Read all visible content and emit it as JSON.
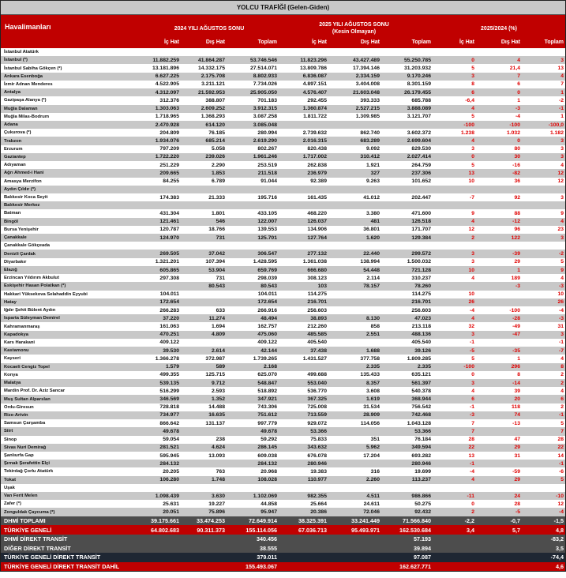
{
  "title": "YOLCU TRAFİĞİ (Gelen-Giden)",
  "header": {
    "airports": "Havalimanları",
    "group2024": "2024 YILI AĞUSTOS SONU",
    "group2025": "2025 YILI AĞUSTOS SONU",
    "group2025_note": "(Kesin Olmayan)",
    "groupPct": "2025/2024 (%)",
    "cols": [
      "İç Hat",
      "Dış Hat",
      "Toplam",
      "İç Hat",
      "Dış Hat",
      "Toplam",
      "İç Hat",
      "Dış Hat",
      "Toplam"
    ]
  },
  "rows": [
    [
      "İstanbul Atatürk",
      "",
      "",
      "",
      "",
      "",
      "",
      "",
      "",
      ""
    ],
    [
      "İstanbul (*)",
      "11.882.259",
      "41.864.287",
      "53.746.546",
      "11.823.296",
      "43.427.489",
      "55.250.785",
      "0",
      "4",
      "3"
    ],
    [
      "İstanbul Sabiha Gökçen (*)",
      "13.181.896",
      "14.332.175",
      "27.514.071",
      "13.809.786",
      "17.394.146",
      "31.203.932",
      "5",
      "21,4",
      "13"
    ],
    [
      "Ankara Esenboğa",
      "6.627.225",
      "2.175.708",
      "8.802.933",
      "6.836.087",
      "2.334.159",
      "9.170.246",
      "3",
      "7",
      "4"
    ],
    [
      "İzmir Adnan Menderes",
      "4.522.905",
      "3.211.121",
      "7.734.026",
      "4.897.151",
      "3.404.008",
      "8.301.159",
      "8",
      "6",
      "7"
    ],
    [
      "Antalya",
      "4.312.097",
      "21.592.953",
      "25.905.050",
      "4.576.407",
      "21.603.048",
      "26.179.455",
      "6",
      "0",
      "1"
    ],
    [
      "Gazipaşa Alanya (*)",
      "312.376",
      "388.807",
      "701.183",
      "292.455",
      "393.333",
      "685.788",
      "-6,4",
      "1",
      "-2"
    ],
    [
      "Muğla Dalaman",
      "1.303.063",
      "2.609.252",
      "3.912.315",
      "1.360.874",
      "2.527.215",
      "3.888.089",
      "4",
      "-3",
      "-1"
    ],
    [
      "Muğla Milas-Bodrum",
      "1.718.965",
      "1.368.293",
      "3.087.258",
      "1.811.722",
      "1.309.985",
      "3.121.707",
      "5",
      "-4",
      "1"
    ],
    [
      "Adana",
      "2.470.928",
      "614.120",
      "3.085.048",
      "",
      "",
      "",
      "-100",
      "-100",
      "-100,0"
    ],
    [
      "Çukurova (*)",
      "204.809",
      "76.185",
      "280.994",
      "2.739.632",
      "862.740",
      "3.602.372",
      "1.238",
      "1.032",
      "1.182"
    ],
    [
      "Trabzon",
      "1.934.076",
      "685.214",
      "2.619.290",
      "2.016.315",
      "683.289",
      "2.699.604",
      "4",
      "0",
      "3"
    ],
    [
      "Erzurum",
      "797.209",
      "5.058",
      "802.267",
      "820.438",
      "9.092",
      "829.530",
      "3",
      "80",
      "3"
    ],
    [
      "Gaziantep",
      "1.722.220",
      "239.026",
      "1.961.246",
      "1.717.002",
      "310.412",
      "2.027.414",
      "0",
      "30",
      "3"
    ],
    [
      "Adıyaman",
      "251.229",
      "2.290",
      "253.519",
      "262.838",
      "1.921",
      "264.759",
      "5",
      "-16",
      "4"
    ],
    [
      "Ağrı Ahmed-i Hani",
      "209.665",
      "1.853",
      "211.518",
      "236.979",
      "327",
      "237.306",
      "13",
      "-82",
      "12"
    ],
    [
      "Amasya Merzifon",
      "84.255",
      "6.789",
      "91.044",
      "92.389",
      "9.263",
      "101.652",
      "10",
      "36",
      "12"
    ],
    [
      "Aydın Çıldır (*)",
      "",
      "",
      "",
      "",
      "",
      "",
      "",
      "",
      ""
    ],
    [
      "Balıkesir Koca Seyit",
      "174.383",
      "21.333",
      "195.716",
      "161.435",
      "41.012",
      "202.447",
      "-7",
      "92",
      "3"
    ],
    [
      "Balıkesir Merkez",
      "",
      "",
      "",
      "",
      "",
      "",
      "",
      "",
      ""
    ],
    [
      "Batman",
      "431.304",
      "1.801",
      "433.105",
      "468.220",
      "3.380",
      "471.600",
      "9",
      "88",
      "9"
    ],
    [
      "Bingöl",
      "121.461",
      "546",
      "122.007",
      "126.037",
      "481",
      "126.518",
      "4",
      "-12",
      "4"
    ],
    [
      "Bursa Yenişehir",
      "120.787",
      "18.766",
      "139.553",
      "134.906",
      "36.801",
      "171.707",
      "12",
      "96",
      "23"
    ],
    [
      "Çanakkale",
      "124.970",
      "731",
      "125.701",
      "127.764",
      "1.620",
      "129.384",
      "2",
      "122",
      "3"
    ],
    [
      "Çanakkale Gökçeada",
      "",
      "",
      "",
      "",
      "",
      "",
      "",
      "",
      ""
    ],
    [
      "Denizli Çardak",
      "269.505",
      "37.042",
      "306.547",
      "277.132",
      "22.440",
      "299.572",
      "3",
      "-39",
      "-2"
    ],
    [
      "Diyarbakır",
      "1.321.201",
      "107.394",
      "1.428.595",
      "1.361.038",
      "138.994",
      "1.500.032",
      "3",
      "29",
      "5"
    ],
    [
      "Elazığ",
      "605.865",
      "53.904",
      "659.769",
      "666.680",
      "54.448",
      "721.128",
      "10",
      "1",
      "9"
    ],
    [
      "Erzincan Yıldırım Akbulut",
      "297.308",
      "731",
      "298.039",
      "308.123",
      "2.114",
      "310.237",
      "4",
      "189",
      "4"
    ],
    [
      "Eskişehir Hasan Polatkan (*)",
      "",
      "80.543",
      "80.543",
      "103",
      "78.157",
      "78.260",
      "",
      "-3",
      "-3"
    ],
    [
      "Hakkari Yüksekova Selahaddin Eyyubi",
      "104.011",
      "",
      "104.011",
      "114.275",
      "",
      "114.275",
      "10",
      "",
      "10"
    ],
    [
      "Hatay",
      "172.654",
      "",
      "172.654",
      "216.701",
      "",
      "216.701",
      "26",
      "",
      "26"
    ],
    [
      "Iğdır Şehit Bülent Aydın",
      "266.283",
      "633",
      "266.916",
      "256.603",
      "",
      "256.603",
      "-4",
      "-100",
      "-4"
    ],
    [
      "Isparta Süleyman Demirel",
      "37.220",
      "11.274",
      "48.494",
      "38.893",
      "8.130",
      "47.023",
      "4",
      "-28",
      "-3"
    ],
    [
      "Kahramanmaraş",
      "161.063",
      "1.694",
      "162.757",
      "212.260",
      "858",
      "213.118",
      "32",
      "-49",
      "31"
    ],
    [
      "Kapadokya",
      "470.251",
      "4.809",
      "475.060",
      "485.585",
      "2.551",
      "488.136",
      "3",
      "-47",
      "3"
    ],
    [
      "Kars Harakani",
      "409.122",
      "",
      "409.122",
      "405.540",
      "",
      "405.540",
      "-1",
      "",
      "-1"
    ],
    [
      "Kastamonu",
      "39.530",
      "2.614",
      "42.144",
      "37.438",
      "1.688",
      "39.126",
      "-5",
      "-35",
      "-7"
    ],
    [
      "Kayseri",
      "1.366.278",
      "372.987",
      "1.739.265",
      "1.431.527",
      "377.758",
      "1.809.285",
      "5",
      "1",
      "4"
    ],
    [
      "Kocaeli Cengiz Topel",
      "1.579",
      "589",
      "2.168",
      "",
      "2.335",
      "2.335",
      "-100",
      "296",
      "8"
    ],
    [
      "Konya",
      "499.355",
      "125.715",
      "625.070",
      "499.688",
      "135.433",
      "635.121",
      "0",
      "8",
      "2"
    ],
    [
      "Malatya",
      "539.135",
      "9.712",
      "548.847",
      "553.040",
      "8.357",
      "561.397",
      "3",
      "-14",
      "2"
    ],
    [
      "Mardin Prof. Dr. Aziz Sancar",
      "516.299",
      "2.593",
      "518.892",
      "536.770",
      "3.608",
      "540.378",
      "4",
      "39",
      "4"
    ],
    [
      "Muş Sultan Alparslan",
      "346.569",
      "1.352",
      "347.921",
      "367.325",
      "1.619",
      "368.944",
      "6",
      "20",
      "6"
    ],
    [
      "Ordu-Giresun",
      "728.818",
      "14.488",
      "743.306",
      "725.008",
      "31.534",
      "756.542",
      "-1",
      "118",
      "2"
    ],
    [
      "Rize-Artvin",
      "734.977",
      "16.635",
      "751.612",
      "713.559",
      "28.909",
      "742.468",
      "-3",
      "74",
      "-1"
    ],
    [
      "Samsun Çarşamba",
      "866.642",
      "131.137",
      "997.779",
      "929.072",
      "114.056",
      "1.043.128",
      "7",
      "-13",
      "5"
    ],
    [
      "Siirt",
      "49.678",
      "",
      "49.678",
      "53.366",
      "",
      "53.366",
      "7",
      "",
      "7"
    ],
    [
      "Sinop",
      "59.054",
      "238",
      "59.292",
      "75.833",
      "351",
      "76.184",
      "28",
      "47",
      "28"
    ],
    [
      "Sivas Nuri Demirağ",
      "281.521",
      "4.624",
      "286.145",
      "343.632",
      "5.962",
      "349.594",
      "22",
      "29",
      "22"
    ],
    [
      "Şanlıurfa Gap",
      "595.945",
      "13.093",
      "609.038",
      "676.078",
      "17.204",
      "693.282",
      "13",
      "31",
      "14"
    ],
    [
      "Şırnak Şerafettin Elçi",
      "284.132",
      "",
      "284.132",
      "280.946",
      "",
      "280.946",
      "-1",
      "",
      "-1"
    ],
    [
      "Tekirdağ Çorlu Atatürk",
      "20.205",
      "763",
      "20.968",
      "19.383",
      "316",
      "19.699",
      "-4",
      "-59",
      "-6"
    ],
    [
      "Tokat",
      "106.280",
      "1.748",
      "108.028",
      "110.977",
      "2.260",
      "113.237",
      "4",
      "29",
      "5"
    ],
    [
      "Uşak",
      "",
      "",
      "",
      "",
      "",
      "",
      "",
      "",
      ""
    ],
    [
      "Van Ferit Melen",
      "1.098.439",
      "3.630",
      "1.102.069",
      "982.355",
      "4.511",
      "986.866",
      "-11",
      "24",
      "-10"
    ],
    [
      "Zafer (*)",
      "25.631",
      "19.227",
      "44.858",
      "25.664",
      "24.611",
      "50.275",
      "0",
      "28",
      "12"
    ],
    [
      "Zonguldak Çaycuma (*)",
      "20.051",
      "75.896",
      "95.947",
      "20.386",
      "72.046",
      "92.432",
      "2",
      "-5",
      "-4"
    ]
  ],
  "summary": [
    {
      "style": "dark",
      "cells": [
        "DHMİ TOPLAMI",
        "39.175.661",
        "33.474.253",
        "72.649.914",
        "38.325.391",
        "33.241.449",
        "71.566.840",
        "-2,2",
        "-0,7",
        "-1,5"
      ]
    },
    {
      "style": "red",
      "cells": [
        "TÜRKİYE GENELİ",
        "64.802.683",
        "90.311.373",
        "155.114.056",
        "67.036.713",
        "95.493.971",
        "162.530.684",
        "3,4",
        "5,7",
        "4,8"
      ]
    },
    {
      "style": "dark",
      "cells": [
        "DHMİ DİREKT TRANSİT",
        "",
        "",
        "340.456",
        "",
        "",
        "57.193",
        "",
        "",
        "-83,2"
      ]
    },
    {
      "style": "dark",
      "cells": [
        "DİĞER DİREKT TRANSİT",
        "",
        "",
        "38.555",
        "",
        "",
        "39.894",
        "",
        "",
        "3,5"
      ]
    },
    {
      "style": "navy",
      "cells": [
        "TÜRKİYE GENELİ DİREKT TRANSİT",
        "",
        "",
        "379.011",
        "",
        "",
        "97.087",
        "",
        "",
        "-74,4"
      ]
    },
    {
      "style": "red",
      "cells": [
        "TÜRKİYE GENELİ DİREKT TRANSİT DAHİL",
        "",
        "",
        "155.493.067",
        "",
        "",
        "162.627.771",
        "",
        "",
        "4,6"
      ]
    }
  ]
}
